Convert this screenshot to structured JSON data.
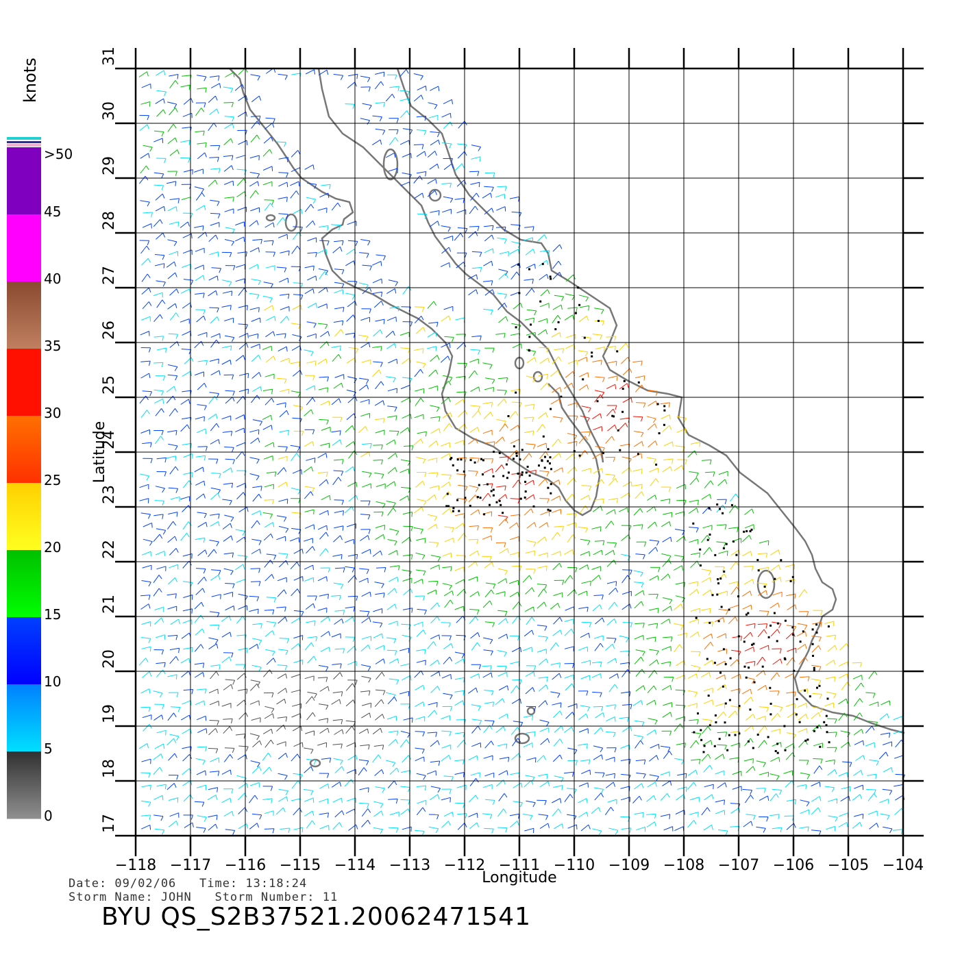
{
  "colorbar": {
    "unit": "knots",
    "labels": [
      ">50",
      "45",
      "40",
      "35",
      "30",
      "25",
      "20",
      "15",
      "10",
      "5",
      "0"
    ],
    "colors": {
      "v0_5": "#505050",
      "v5_10": "#00e0ff",
      "v10_15": "#0040ff",
      "v15_20": "#00c000",
      "v20_25": "#ffd000",
      "v25_30": "#ff7000",
      "v30_35": "#ff1000",
      "v35_40": "#8a4a30",
      "v40_45": "#ff00ff",
      "v45_50": "#8000c0",
      "rain_flag": "#000000"
    }
  },
  "chart_data": {
    "type": "map",
    "title": "",
    "xlabel": "Longitude",
    "ylabel": "Latitude",
    "xlim": [
      -118,
      -104
    ],
    "ylim": [
      17,
      31
    ],
    "x_ticks": [
      "−118",
      "−117",
      "−116",
      "−115",
      "−114",
      "−113",
      "−112",
      "−111",
      "−110",
      "−109",
      "−108",
      "−107",
      "−106",
      "−105",
      "−104"
    ],
    "y_ticks": [
      "17",
      "18",
      "19",
      "20",
      "21",
      "22",
      "23",
      "24",
      "25",
      "26",
      "27",
      "28",
      "29",
      "30",
      "31"
    ],
    "grid": true,
    "layers": [
      "coastline",
      "wind barbs"
    ]
  },
  "footer": {
    "date_line": "Date: 09/02/06   Time: 13:18:24",
    "storm_line": "Storm Name: JOHN   Storm Number: 11",
    "product_line": "BYU QS_S2B37521.20062471541"
  }
}
